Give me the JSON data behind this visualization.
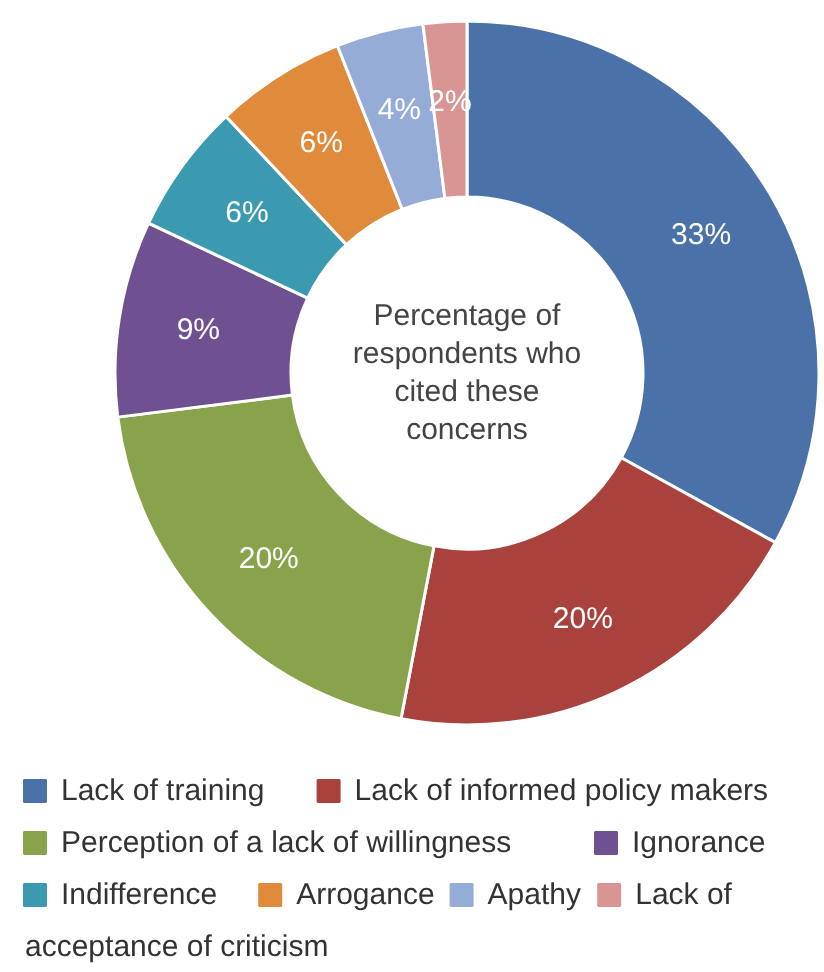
{
  "chart_data": {
    "type": "donut",
    "title": "Percentage of respondents who cited these concerns",
    "categories": [
      "Lack of training",
      "Lack of informed policy makers",
      "Perception of a lack of willingness",
      "Ignorance",
      "Indifference",
      "Arrogance",
      "Apathy",
      "Lack of acceptance of criticism"
    ],
    "values": [
      33,
      20,
      20,
      9,
      6,
      6,
      4,
      2
    ],
    "colors": [
      "#4a72a8",
      "#a9413d",
      "#88a34b",
      "#6f5090",
      "#3c9ab0",
      "#e08a3b",
      "#95add6",
      "#d89593"
    ],
    "value_labels": [
      "33%",
      "20%",
      "20%",
      "9%",
      "6%",
      "6%",
      "4%",
      "2%"
    ],
    "legend": "bottom"
  }
}
